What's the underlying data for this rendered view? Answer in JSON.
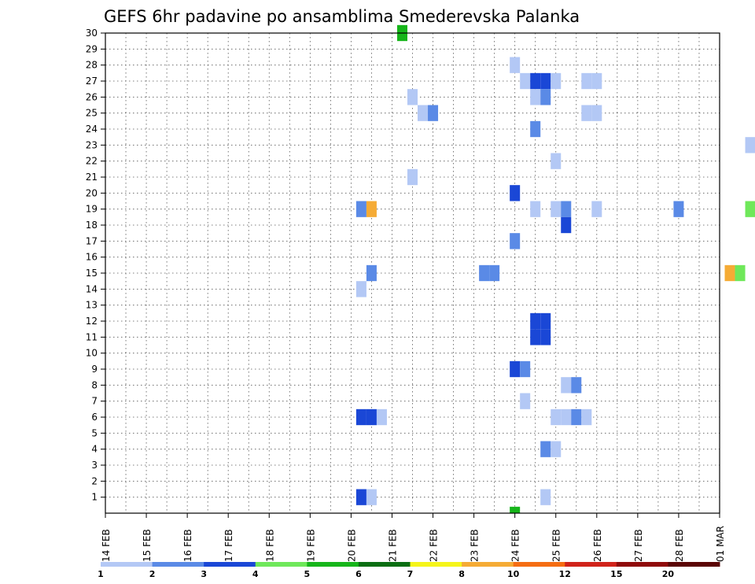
{
  "chart_data": {
    "type": "heatmap",
    "title": "GEFS 6hr padavine po ansamblima Smederevska Palanka",
    "x_tick_labels": [
      "14 FEB",
      "15 FEB",
      "16 FEB",
      "17 FEB",
      "18 FEB",
      "19 FEB",
      "20 FEB",
      "21 FEB",
      "22 FEB",
      "23 FEB",
      "24 FEB",
      "25 FEB",
      "26 FEB",
      "27 FEB",
      "28 FEB",
      "01 MAR"
    ],
    "x_step": "6hr",
    "x_range_days": [
      0,
      15
    ],
    "y_tick_labels": [
      "1",
      "2",
      "3",
      "4",
      "5",
      "6",
      "7",
      "8",
      "9",
      "10",
      "11",
      "12",
      "13",
      "14",
      "15",
      "16",
      "17",
      "18",
      "19",
      "20",
      "21",
      "22",
      "23",
      "24",
      "25",
      "26",
      "27",
      "28",
      "29",
      "30"
    ],
    "y_range": [
      0,
      30
    ],
    "grid": true,
    "colorbar": {
      "labels": [
        "1",
        "2",
        "3",
        "4",
        "5",
        "6",
        "7",
        "8",
        "10",
        "12",
        "15",
        "20"
      ],
      "colors": [
        "#b3c8f5",
        "#5a8ae6",
        "#1a47d6",
        "#1a47d6",
        "#6fe85a",
        "#16b51a",
        "#0a6e12",
        "#f5f51a",
        "#f5ab35",
        "#f56d12",
        "#d0231a",
        "#8f0a0a",
        "#5a0404"
      ]
    },
    "cells": [
      {
        "t": 4,
        "m": 30,
        "c": 5
      },
      {
        "t": 4,
        "m": 0,
        "c": 5
      },
      {
        "t": 1,
        "m": 29,
        "c": 1
      },
      {
        "t": 2,
        "m": 29,
        "c": 4
      },
      {
        "t": 3,
        "m": 29,
        "c": 1
      },
      {
        "t": -2,
        "m": 28,
        "c": 1
      },
      {
        "t": -4,
        "m": 28,
        "c": 2
      },
      {
        "t": -3,
        "m": 28,
        "c": 3
      },
      {
        "t": -1,
        "m": 28,
        "c": 1
      },
      {
        "t": 0,
        "m": 28,
        "c": 1
      },
      {
        "t": 2,
        "m": 28,
        "c": 7
      },
      {
        "t": 3,
        "m": 28,
        "c": 1
      },
      {
        "t": -1,
        "m": 27,
        "c": 1
      },
      {
        "t": 0,
        "m": 27,
        "c": 1
      },
      {
        "t": 1,
        "m": 27,
        "c": 3
      },
      {
        "t": 2,
        "m": 27,
        "c": 3
      },
      {
        "t": 3,
        "m": 27,
        "c": 1
      },
      {
        "t": 5,
        "m": 27,
        "c": 1
      },
      {
        "t": 6,
        "m": 27,
        "c": 1
      },
      {
        "t": -4,
        "m": 27,
        "c": 1
      },
      {
        "t": -3,
        "m": 27,
        "c": 5
      },
      {
        "t": -5,
        "m": 27,
        "c": 1
      },
      {
        "t": -1,
        "m": 26,
        "c": 1
      },
      {
        "t": 0,
        "m": 26,
        "c": 1
      },
      {
        "t": 1,
        "m": 26,
        "c": 2
      },
      {
        "t": 1,
        "m": 25,
        "c": 1
      },
      {
        "t": 2,
        "m": 25,
        "c": 2
      },
      {
        "t": 5,
        "m": 25,
        "c": 1
      },
      {
        "t": 6,
        "m": 25,
        "c": 1
      },
      {
        "t": 2,
        "m": 24,
        "c": 2
      },
      {
        "t": -3,
        "m": 24,
        "c": 4
      },
      {
        "t": -2,
        "m": 24,
        "c": 7
      },
      {
        "t": -1,
        "m": 24,
        "c": 6
      },
      {
        "t": 0,
        "m": 24,
        "c": 2
      },
      {
        "t": -4,
        "m": 24,
        "c": 1
      },
      {
        "t": -5,
        "m": 24,
        "c": 5
      },
      {
        "t": -6,
        "m": 24,
        "c": 2
      },
      {
        "t": -7,
        "m": 24,
        "c": 2
      },
      {
        "t": 1,
        "m": 23,
        "c": 1
      },
      {
        "t": -6,
        "m": 23,
        "c": 1
      },
      {
        "t": 3,
        "m": 22,
        "c": 1
      },
      {
        "t": -4,
        "m": 22,
        "c": 3
      },
      {
        "t": -3,
        "m": 22,
        "c": 4
      },
      {
        "t": -2,
        "m": 22,
        "c": 1
      },
      {
        "t": 1,
        "m": 21,
        "c": 1
      },
      {
        "t": 1,
        "m": 21,
        "c": 1
      },
      {
        "t": -1,
        "m": 21,
        "c": 1
      },
      {
        "t": 1,
        "m": 20,
        "c": 3
      },
      {
        "t": 2,
        "m": 19,
        "c": 2
      },
      {
        "t": -1,
        "m": 19,
        "c": 1
      },
      {
        "t": 0,
        "m": 19,
        "c": 1
      },
      {
        "t": 1,
        "m": 19,
        "c": 2
      },
      {
        "t": 2,
        "m": 19,
        "c": 1
      },
      {
        "t": 6,
        "m": 19,
        "c": 2
      },
      {
        "t": -5,
        "m": 19,
        "c": 4
      },
      {
        "t": -4,
        "m": 19,
        "c": 2
      },
      {
        "t": 0,
        "m": 19,
        "c": 2
      },
      {
        "t": 1,
        "m": 19,
        "c": 2
      },
      {
        "t": 2,
        "m": 19,
        "c": 1
      },
      {
        "t": 3,
        "m": 19,
        "c": 1
      },
      {
        "t": 4,
        "m": 19,
        "c": 1
      },
      {
        "t": 3,
        "m": 18,
        "c": 8
      },
      {
        "t": 1,
        "m": 17,
        "c": 3
      },
      {
        "t": -2,
        "m": 17,
        "c": 3
      },
      {
        "t": -1,
        "m": 17,
        "c": 6
      },
      {
        "t": 0,
        "m": 17,
        "c": 3
      },
      {
        "t": 1,
        "m": 17,
        "c": 2
      },
      {
        "t": -3,
        "m": 17,
        "c": 3
      },
      {
        "t": -2,
        "m": 17,
        "c": 7
      },
      {
        "t": -1,
        "m": 17,
        "c": 1
      },
      {
        "t": 0,
        "m": 16,
        "c": 2
      },
      {
        "t": 1,
        "m": 14,
        "c": 2
      },
      {
        "t": -2,
        "m": 14,
        "c": 2
      },
      {
        "t": -1,
        "m": 14,
        "c": 2
      },
      {
        "t": 3,
        "m": 14,
        "c": 8
      },
      {
        "t": 4,
        "m": 14,
        "c": 4
      },
      {
        "t": 0,
        "m": 14,
        "c": 2
      },
      {
        "t": 2,
        "m": 14,
        "c": 2
      },
      {
        "t": 3,
        "m": 14,
        "c": 1
      },
      {
        "t": 0,
        "m": 15,
        "c": 11
      },
      {
        "t": 0,
        "m": 13,
        "c": 1
      },
      {
        "t": 1,
        "m": 13,
        "c": 1
      },
      {
        "t": 2,
        "m": 13,
        "c": 8
      },
      {
        "t": 3,
        "m": 13,
        "c": 6
      },
      {
        "t": 4,
        "m": 13,
        "c": 1
      },
      {
        "t": -1,
        "m": 13,
        "c": 1
      },
      {
        "t": -2,
        "m": 13,
        "c": 3
      },
      {
        "t": -1,
        "m": 13,
        "c": 4
      },
      {
        "t": 0,
        "m": 13,
        "c": 4
      },
      {
        "t": -3,
        "m": 12,
        "c": 1
      },
      {
        "t": -2,
        "m": 12,
        "c": 1
      },
      {
        "t": -1,
        "m": 12,
        "c": 3
      },
      {
        "t": 0,
        "m": 12,
        "c": 1
      },
      {
        "t": 1,
        "m": 11,
        "c": 3
      },
      {
        "t": 2,
        "m": 11,
        "c": 3
      },
      {
        "t": 1,
        "m": 10,
        "c": 3
      },
      {
        "t": 2,
        "m": 10,
        "c": 3
      },
      {
        "t": 0,
        "m": 9,
        "c": 3
      },
      {
        "t": 1,
        "m": 9,
        "c": 2
      },
      {
        "t": -2,
        "m": 9,
        "c": 2
      },
      {
        "t": -1,
        "m": 9,
        "c": 1
      },
      {
        "t": 2,
        "m": 8,
        "c": 1
      },
      {
        "t": 3,
        "m": 8,
        "c": 2
      },
      {
        "t": -1,
        "m": 8,
        "c": 1
      },
      {
        "t": 0,
        "m": 8,
        "c": 1
      },
      {
        "t": 1,
        "m": 7,
        "c": 1
      },
      {
        "t": -2,
        "m": 7,
        "c": 1
      },
      {
        "t": -1,
        "m": 7,
        "c": 3
      },
      {
        "t": 0,
        "m": 7,
        "c": 1
      },
      {
        "t": -1,
        "m": 6,
        "c": 3
      },
      {
        "t": 0,
        "m": 6,
        "c": 3
      },
      {
        "t": 1,
        "m": 6,
        "c": 1
      },
      {
        "t": 2,
        "m": 6,
        "c": 1
      },
      {
        "t": 3,
        "m": 6,
        "c": 1
      },
      {
        "t": 4,
        "m": 6,
        "c": 2
      },
      {
        "t": 5,
        "m": 6,
        "c": 1
      },
      {
        "t": -4,
        "m": 6,
        "c": 1
      },
      {
        "t": -3,
        "m": 6,
        "c": 2
      },
      {
        "t": -4,
        "m": 5,
        "c": 7
      },
      {
        "t": -3,
        "m": 5,
        "c": 2
      },
      {
        "t": -2,
        "m": 5,
        "c": 2
      },
      {
        "t": -4,
        "m": 4,
        "c": 3
      },
      {
        "t": -3,
        "m": 4,
        "c": 2
      },
      {
        "t": 2,
        "m": 4,
        "c": 2
      },
      {
        "t": 3,
        "m": 4,
        "c": 1
      },
      {
        "t": -1,
        "m": 4,
        "c": 3
      },
      {
        "t": 0,
        "m": 4,
        "c": 6
      },
      {
        "t": 4,
        "m": 4,
        "c": 2
      },
      {
        "t": -5,
        "m": 3,
        "c": 1
      },
      {
        "t": -4,
        "m": 3,
        "c": 5
      },
      {
        "t": -2,
        "m": 3,
        "c": 8
      },
      {
        "t": -1,
        "m": 3,
        "c": 5
      },
      {
        "t": -1,
        "m": 1,
        "c": 3
      },
      {
        "t": 0,
        "m": 1,
        "c": 1
      },
      {
        "t": 2,
        "m": 1,
        "c": 1
      },
      {
        "t": -3,
        "m": 0,
        "c": 1
      },
      {
        "t": 2,
        "m": 0,
        "c": 3
      },
      {
        "t": 3,
        "m": 0,
        "c": 3
      },
      {
        "t": 4,
        "m": 0,
        "c": 1
      }
    ]
  }
}
